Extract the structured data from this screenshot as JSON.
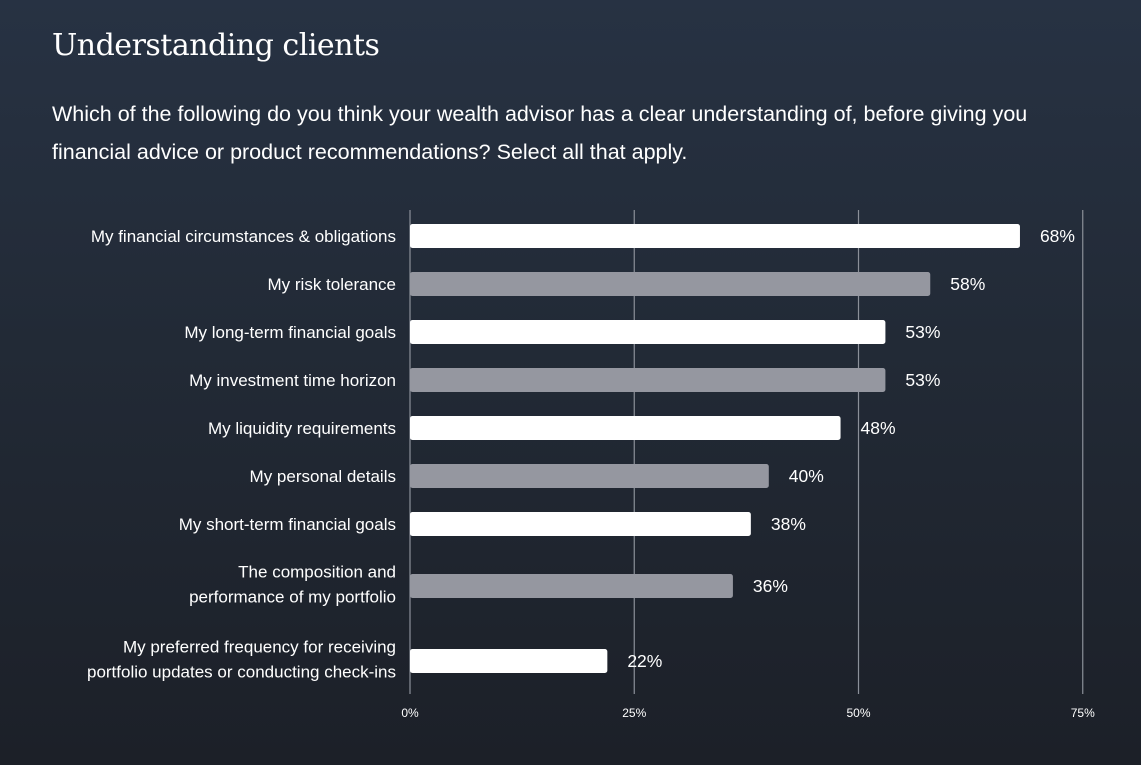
{
  "header": {
    "title": "Understanding clients",
    "question": "Which of the following do you think your wealth advisor has a clear understanding of, before giving you financial advice or product recommendations? Select all that apply."
  },
  "colors": {
    "bar_primary": "#ffffff",
    "bar_secondary": "#9597a0",
    "gridline": "#8b9099",
    "text": "#ffffff"
  },
  "chart_data": {
    "type": "bar",
    "orientation": "horizontal",
    "categories": [
      [
        "My financial circumstances & obligations"
      ],
      [
        "My risk tolerance"
      ],
      [
        "My long-term financial goals"
      ],
      [
        "My investment time horizon"
      ],
      [
        "My liquidity requirements"
      ],
      [
        "My personal details"
      ],
      [
        "My short-term financial goals"
      ],
      [
        "The composition and",
        "performance of my portfolio"
      ],
      [
        "My preferred frequency for receiving",
        "portfolio updates or conducting check-ins"
      ]
    ],
    "values": [
      68,
      58,
      53,
      53,
      48,
      40,
      38,
      36,
      22
    ],
    "value_labels": [
      "68%",
      "58%",
      "53%",
      "53%",
      "48%",
      "40%",
      "38%",
      "36%",
      "22%"
    ],
    "bar_colors": [
      "#ffffff",
      "#9597a0",
      "#ffffff",
      "#9597a0",
      "#ffffff",
      "#9597a0",
      "#ffffff",
      "#9597a0",
      "#ffffff"
    ],
    "xlim": [
      0,
      75
    ],
    "xticks": [
      0,
      25,
      50,
      75
    ],
    "xtick_labels": [
      "0%",
      "25%",
      "50%",
      "75%"
    ],
    "grid": true
  }
}
